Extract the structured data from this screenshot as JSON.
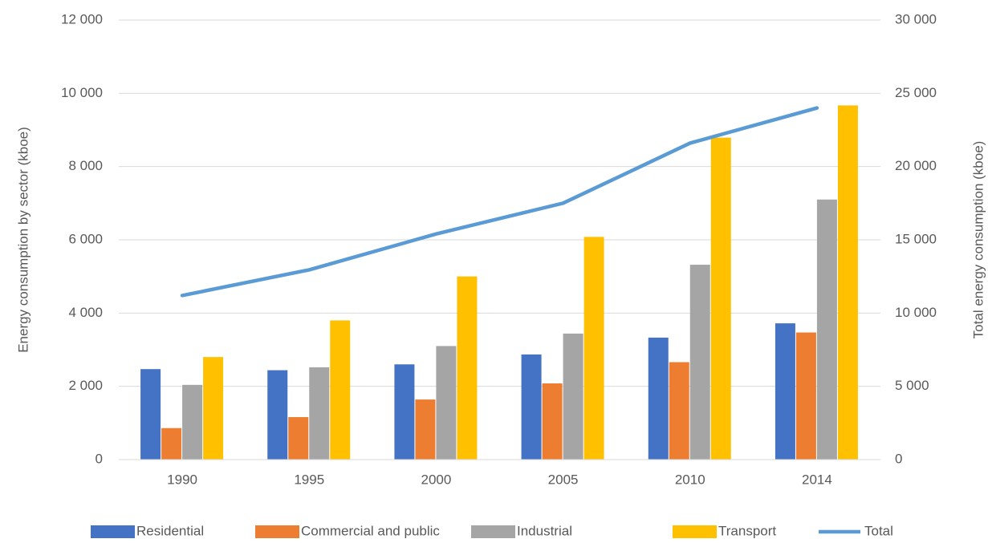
{
  "chart_data": {
    "type": "bar",
    "y_label": "Energy consumption by sector (kboe)",
    "y2_label": "Total energy consumption (kboe)",
    "categories": [
      "1990",
      "1995",
      "2000",
      "2005",
      "2010",
      "2014"
    ],
    "series": [
      {
        "name": "Residential",
        "color": "#4472c4",
        "values": [
          2470,
          2440,
          2600,
          2870,
          3330,
          3720
        ]
      },
      {
        "name": "Commercial and public",
        "color": "#ed7d31",
        "values": [
          860,
          1160,
          1640,
          2080,
          2660,
          3470
        ]
      },
      {
        "name": "Industrial",
        "color": "#a5a5a5",
        "values": [
          2040,
          2520,
          3100,
          3440,
          5320,
          7100
        ]
      },
      {
        "name": "Transport",
        "color": "#ffc000",
        "values": [
          2800,
          3800,
          5000,
          6080,
          8790,
          9670
        ]
      },
      {
        "name": "Total",
        "color": "#5b9bd5",
        "type": "line",
        "axis": "y2",
        "values": [
          11200,
          12950,
          15400,
          17500,
          21600,
          24000
        ]
      }
    ],
    "ylim": [
      0,
      12000
    ],
    "yticks": [
      0,
      {
        "value": 2000,
        "label": "2 000"
      },
      {
        "value": 4000,
        "label": "4 000"
      },
      {
        "value": 6000,
        "label": "6 000"
      },
      {
        "value": 8000,
        "label": "8 000"
      },
      {
        "value": 10000,
        "label": "10 000"
      },
      {
        "value": 12000,
        "label": "12 000"
      }
    ],
    "y2lim": [
      0,
      30000
    ],
    "y2ticks": [
      0,
      {
        "value": 5000,
        "label": "5 000"
      },
      {
        "value": 10000,
        "label": "10 000"
      },
      {
        "value": 15000,
        "label": "15 000"
      },
      {
        "value": 20000,
        "label": "20 000"
      },
      {
        "value": 25000,
        "label": "25 000"
      },
      {
        "value": 30000,
        "label": "30 000"
      }
    ],
    "grid": true,
    "legend": "bottom"
  }
}
